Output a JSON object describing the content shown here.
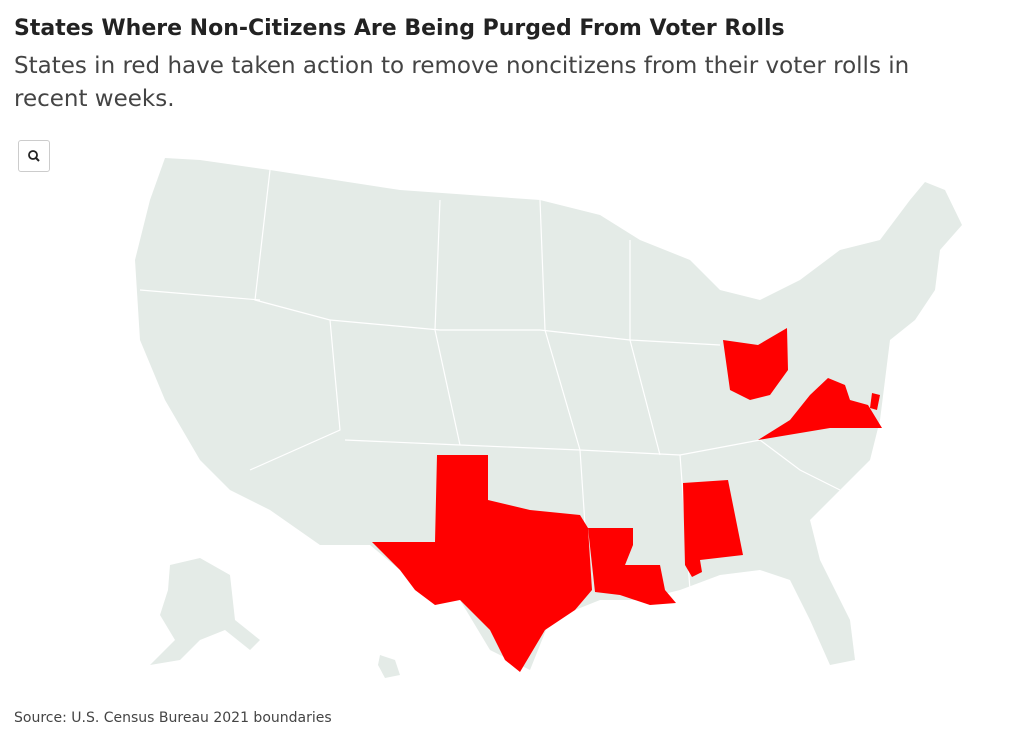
{
  "header": {
    "title": "States Where Non-Citizens Are Being Purged From Voter Rolls",
    "subtitle": "States in red have taken action to remove noncitizens from their voter rolls in recent weeks."
  },
  "footer": {
    "source": "Source: U.S. Census Bureau 2021 boundaries"
  }
}
